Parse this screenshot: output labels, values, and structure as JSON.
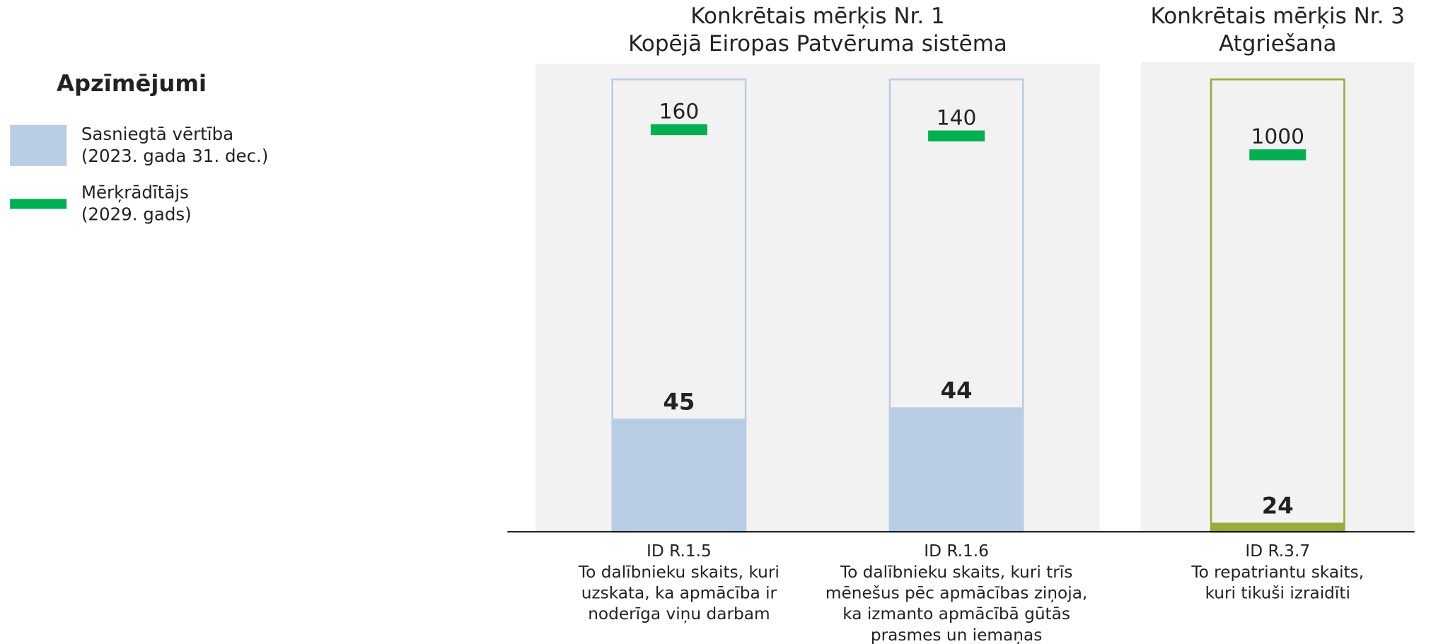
{
  "legend": {
    "title": "Apzīmējumi",
    "items": [
      {
        "lines": [
          "Sasniegtā vērtība",
          "(2023. gada 31. dec.)"
        ],
        "color": "#b9cde4"
      },
      {
        "lines": [
          "Mērķrādītājs",
          "(2029. gads)"
        ],
        "color": "#00b050"
      }
    ]
  },
  "chart_data": [
    {
      "type": "bar",
      "title": [
        "Konkrētais mērķis Nr. 1",
        "Kopējā Eiropas Patvēruma sistēma"
      ],
      "title_color": "#2f4f7a",
      "color": "#b9cde4",
      "target_color": "#00b050",
      "categories": [
        [
          "ID R.1.5",
          "To dalībnieku skaits, kuri",
          "uzskata, ka apmācība ir",
          "noderīga viņu darbam"
        ],
        [
          "ID R.1.6",
          "To dalībnieku skaits, kuri trīs",
          "mēnešus pēc apmācības ziņoja,",
          "ka izmanto apmācībā gūtās",
          "prasmes un iemaņas"
        ]
      ],
      "values": [
        45,
        44
      ],
      "targets": [
        160,
        140
      ],
      "ylims": [
        [
          0,
          180
        ],
        [
          0,
          160
        ]
      ]
    },
    {
      "type": "bar",
      "title": [
        "Konkrētais mērķis Nr. 3",
        "Atgriešana"
      ],
      "title_color": "#9aab3c",
      "color": "#9aab3c",
      "target_color": "#00b050",
      "categories": [
        [
          "ID R.3.7",
          "To repatriantu skaits,",
          "kuri tikuši izraidīti"
        ]
      ],
      "values": [
        24
      ],
      "targets": [
        1000
      ],
      "ylims": [
        [
          0,
          1200
        ]
      ]
    }
  ]
}
